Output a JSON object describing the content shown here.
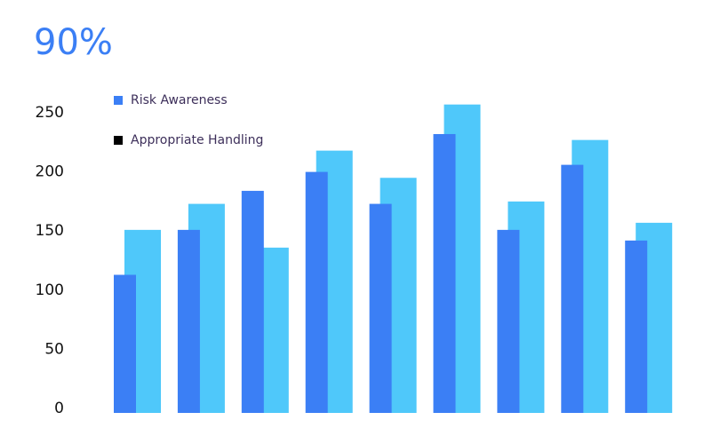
{
  "chart_data": {
    "type": "bar",
    "title": "90%",
    "categories": [
      null,
      null,
      null,
      null,
      null,
      null,
      null,
      null,
      null
    ],
    "series": [
      {
        "name": "Risk Awareness",
        "color": "#3b7ff5",
        "legend_color": "#3b7ff5",
        "values": [
          113,
          151,
          184,
          200,
          173,
          232,
          151,
          206,
          142
        ]
      },
      {
        "name": "Appropriate Handling",
        "color": "#4fc8fa",
        "legend_color": "#000000",
        "values": [
          151,
          173,
          136,
          218,
          195,
          257,
          175,
          227,
          157
        ]
      }
    ],
    "ylim": [
      0,
      250
    ],
    "yticks": [
      0,
      50,
      100,
      150,
      200,
      250
    ],
    "grid": false
  }
}
